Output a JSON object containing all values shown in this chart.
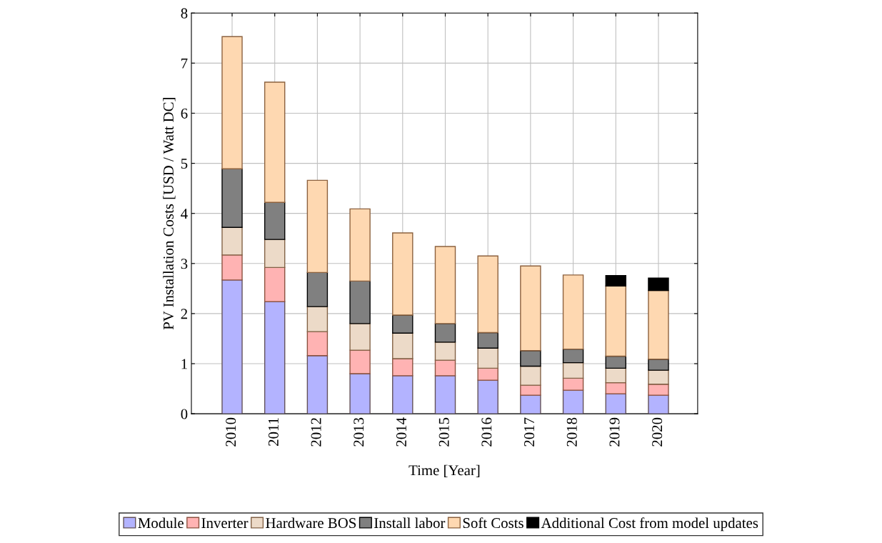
{
  "chart_data": {
    "type": "bar",
    "stacked": true,
    "xlabel": "Time [Year]",
    "ylabel": "PV Installation Costs [USD / Watt DC]",
    "categories": [
      "2010",
      "2011",
      "2012",
      "2013",
      "2014",
      "2015",
      "2016",
      "2017",
      "2018",
      "2019",
      "2020"
    ],
    "series": [
      {
        "name": "Module",
        "color": "#b3b3ff",
        "values": [
          2.67,
          2.24,
          1.16,
          0.8,
          0.76,
          0.76,
          0.67,
          0.37,
          0.47,
          0.4,
          0.37
        ]
      },
      {
        "name": "Inverter",
        "color": "#ffb3b3",
        "values": [
          0.5,
          0.68,
          0.48,
          0.47,
          0.34,
          0.31,
          0.24,
          0.2,
          0.24,
          0.22,
          0.22
        ]
      },
      {
        "name": "Hardware BOS",
        "color": "#ecdac8",
        "values": [
          0.55,
          0.56,
          0.5,
          0.53,
          0.51,
          0.36,
          0.4,
          0.38,
          0.31,
          0.29,
          0.28
        ]
      },
      {
        "name": "Install labor",
        "color": "#808080",
        "values": [
          1.17,
          0.74,
          0.68,
          0.85,
          0.36,
          0.37,
          0.31,
          0.31,
          0.27,
          0.24,
          0.22
        ]
      },
      {
        "name": "Soft Costs",
        "color": "#fed8b1",
        "values": [
          2.64,
          2.4,
          1.84,
          1.44,
          1.64,
          1.54,
          1.53,
          1.69,
          1.48,
          1.4,
          1.37
        ]
      },
      {
        "name": "Additional Cost from model updates",
        "color": "#000000",
        "values": [
          null,
          null,
          null,
          null,
          null,
          null,
          null,
          null,
          null,
          0.21,
          0.25
        ]
      }
    ],
    "ylim": [
      0,
      8
    ],
    "yticks": [
      0,
      1,
      2,
      3,
      4,
      5,
      6,
      7,
      8
    ],
    "grid": true,
    "legend": "bottom"
  }
}
